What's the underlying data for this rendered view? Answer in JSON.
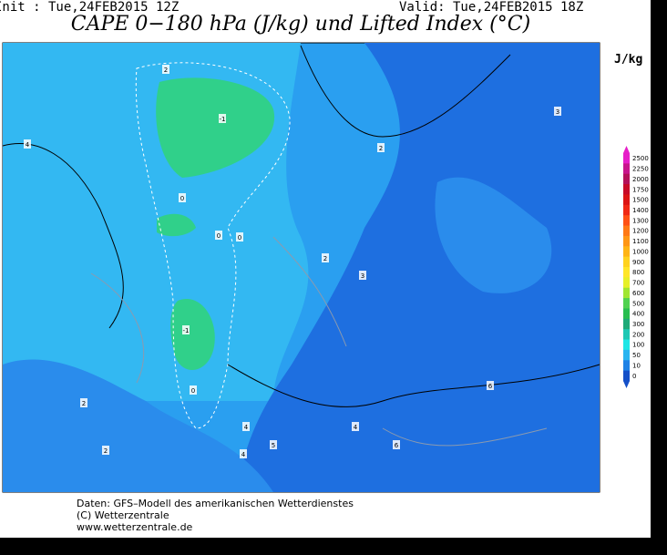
{
  "header": {
    "init": "Init : Tue,24FEB2015 12Z",
    "valid": "Valid: Tue,24FEB2015 18Z",
    "title": "CAPE 0−180 hPa (J/kg) und Lifted Index (°C)"
  },
  "legend": {
    "unit": "J/kg",
    "levels": [
      "2500",
      "2250",
      "2000",
      "1750",
      "1500",
      "1400",
      "1300",
      "1200",
      "1100",
      "1000",
      "900",
      "800",
      "700",
      "600",
      "500",
      "400",
      "300",
      "200",
      "100",
      "50",
      "10",
      "0"
    ],
    "colors": [
      "#e61ec8",
      "#c8148c",
      "#b4105a",
      "#c80a28",
      "#dc1414",
      "#f02814",
      "#ff5014",
      "#ff7814",
      "#ff9614",
      "#ffb414",
      "#ffd21e",
      "#ffe628",
      "#e6f028",
      "#a0e632",
      "#50d250",
      "#28be50",
      "#1eaa78",
      "#1ec8b4",
      "#1ee6e6",
      "#28b4f0",
      "#1e82e6",
      "#1450c8"
    ]
  },
  "contour_labels": [
    "-1",
    "-1",
    "0",
    "0",
    "0",
    "0",
    "2",
    "2",
    "2",
    "2",
    "3",
    "3",
    "4",
    "4",
    "4",
    "4",
    "5",
    "6",
    "6",
    "2"
  ],
  "footer": [
    "Daten: GFS–Modell des amerikanischen Wetterdienstes",
    "(C) Wetterzentrale",
    "www.wetterzentrale.de"
  ]
}
